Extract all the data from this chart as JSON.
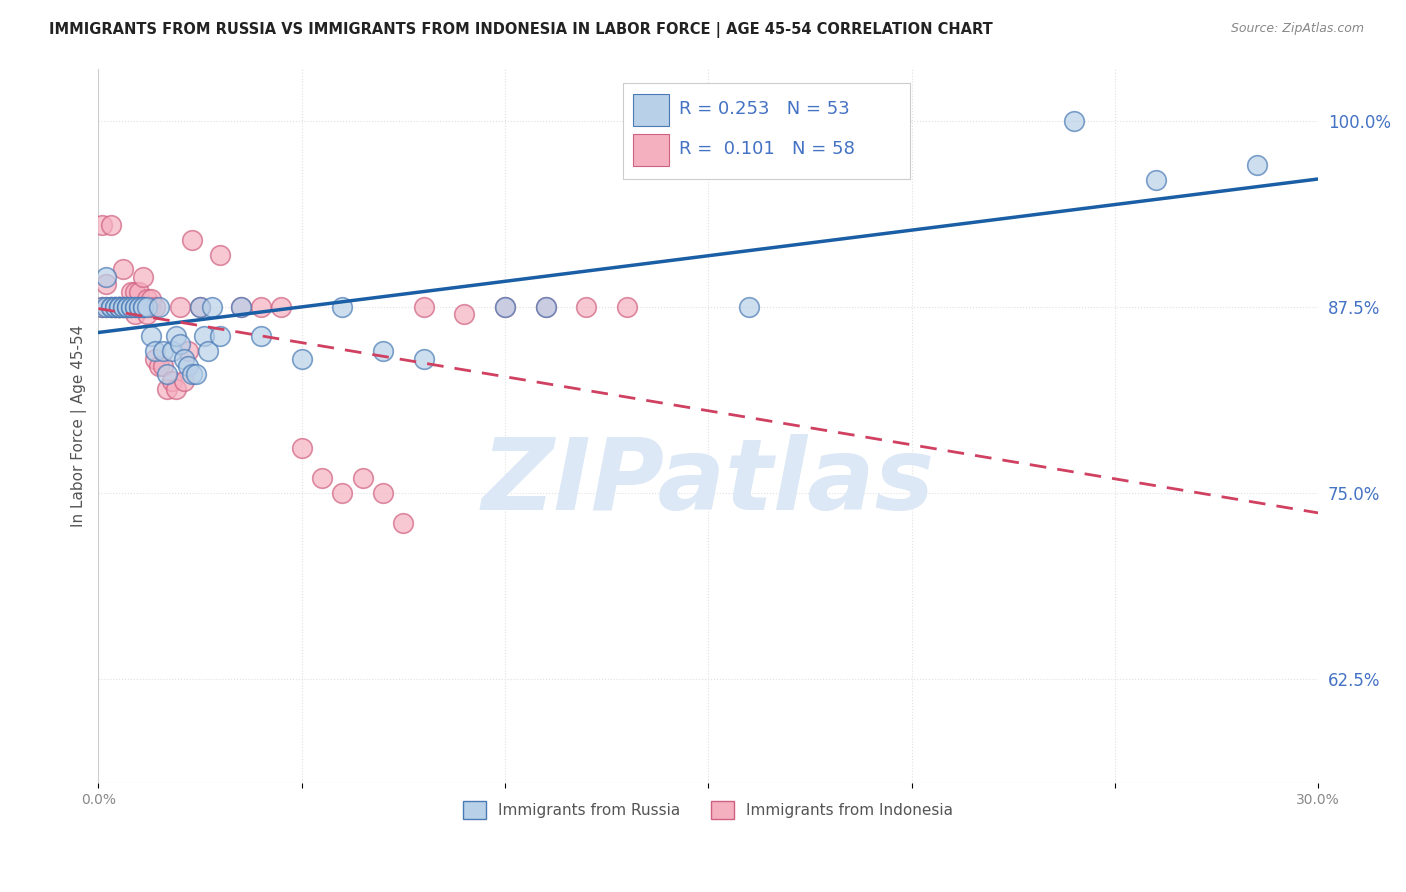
{
  "title": "IMMIGRANTS FROM RUSSIA VS IMMIGRANTS FROM INDONESIA IN LABOR FORCE | AGE 45-54 CORRELATION CHART",
  "source": "Source: ZipAtlas.com",
  "ylabel": "In Labor Force | Age 45-54",
  "xlim": [
    0.0,
    0.3
  ],
  "ylim": [
    0.555,
    1.035
  ],
  "russia_R": 0.253,
  "russia_N": 53,
  "indonesia_R": 0.101,
  "indonesia_N": 58,
  "russia_color": "#b8d0e8",
  "indonesia_color": "#f5b0c0",
  "russia_edge_color": "#4a7ab5",
  "indonesia_edge_color": "#d06080",
  "russia_line_color": "#1a5fa5",
  "indonesia_line_color": "#d04060",
  "watermark": "ZIPatlas",
  "watermark_color": "#dce8f5",
  "background_color": "#ffffff",
  "grid_color": "#e0e0e0",
  "russia_x": [
    0.001,
    0.002,
    0.002,
    0.003,
    0.003,
    0.004,
    0.004,
    0.005,
    0.005,
    0.005,
    0.006,
    0.006,
    0.007,
    0.007,
    0.007,
    0.008,
    0.008,
    0.009,
    0.009,
    0.01,
    0.01,
    0.011,
    0.011,
    0.012,
    0.013,
    0.014,
    0.015,
    0.016,
    0.017,
    0.018,
    0.019,
    0.02,
    0.021,
    0.022,
    0.023,
    0.024,
    0.025,
    0.026,
    0.027,
    0.028,
    0.03,
    0.035,
    0.04,
    0.05,
    0.06,
    0.07,
    0.08,
    0.1,
    0.11,
    0.16,
    0.24,
    0.26,
    0.285
  ],
  "russia_y": [
    0.875,
    0.875,
    0.895,
    0.875,
    0.875,
    0.875,
    0.875,
    0.875,
    0.875,
    0.875,
    0.875,
    0.875,
    0.875,
    0.875,
    0.875,
    0.875,
    0.875,
    0.875,
    0.875,
    0.875,
    0.875,
    0.875,
    0.875,
    0.875,
    0.855,
    0.845,
    0.875,
    0.845,
    0.83,
    0.845,
    0.855,
    0.85,
    0.84,
    0.835,
    0.83,
    0.83,
    0.875,
    0.855,
    0.845,
    0.875,
    0.855,
    0.875,
    0.855,
    0.84,
    0.875,
    0.845,
    0.84,
    0.875,
    0.875,
    0.875,
    1.0,
    0.96,
    0.97
  ],
  "indonesia_x": [
    0.001,
    0.001,
    0.002,
    0.002,
    0.003,
    0.003,
    0.004,
    0.004,
    0.005,
    0.005,
    0.005,
    0.006,
    0.006,
    0.006,
    0.007,
    0.007,
    0.007,
    0.008,
    0.008,
    0.008,
    0.009,
    0.009,
    0.01,
    0.01,
    0.011,
    0.011,
    0.012,
    0.012,
    0.013,
    0.013,
    0.014,
    0.014,
    0.015,
    0.016,
    0.017,
    0.018,
    0.019,
    0.02,
    0.021,
    0.022,
    0.023,
    0.025,
    0.03,
    0.035,
    0.04,
    0.045,
    0.05,
    0.055,
    0.06,
    0.065,
    0.07,
    0.075,
    0.08,
    0.09,
    0.1,
    0.11,
    0.12,
    0.13
  ],
  "indonesia_y": [
    0.93,
    0.875,
    0.875,
    0.89,
    0.93,
    0.875,
    0.875,
    0.875,
    0.875,
    0.875,
    0.875,
    0.9,
    0.875,
    0.875,
    0.875,
    0.875,
    0.875,
    0.875,
    0.885,
    0.875,
    0.87,
    0.885,
    0.875,
    0.885,
    0.895,
    0.875,
    0.87,
    0.88,
    0.875,
    0.88,
    0.84,
    0.875,
    0.835,
    0.835,
    0.82,
    0.825,
    0.82,
    0.875,
    0.825,
    0.845,
    0.92,
    0.875,
    0.91,
    0.875,
    0.875,
    0.875,
    0.78,
    0.76,
    0.75,
    0.76,
    0.75,
    0.73,
    0.875,
    0.87,
    0.875,
    0.875,
    0.875,
    0.875
  ]
}
